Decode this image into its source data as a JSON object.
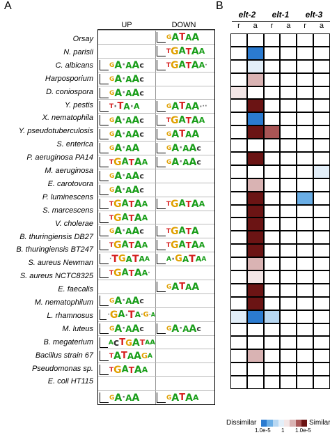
{
  "panel_a_label": "A",
  "panel_b_label": "B",
  "col_up": "UP",
  "col_down": "DOWN",
  "elt_headers": [
    "elt-2",
    "elt-1",
    "elt-3"
  ],
  "ra_labels": [
    "r",
    "a",
    "r",
    "a",
    "r",
    "a"
  ],
  "legend": {
    "dissimilar": "Dissimilar",
    "similar": "Similar",
    "tick_left": "1.0e-5",
    "tick_mid": "1",
    "tick_right": "1.0e-5",
    "dissimilar_colors": [
      "#2b7bd0",
      "#6aaee6",
      "#b7d7f2",
      "#e3eff9"
    ],
    "similar_colors": [
      "#f3e6e6",
      "#d9b3b3",
      "#a85555",
      "#6b1414"
    ]
  },
  "organisms": [
    {
      "name": "Orsay",
      "up": "",
      "down": "GATAA"
    },
    {
      "name": "N. parisii",
      "up": "",
      "down": "TGATAA"
    },
    {
      "name": "C. albicans",
      "up": "GAxAAc",
      "down": "TGATAAx"
    },
    {
      "name": "Harposporium",
      "up": "GAxAAc",
      "down": ""
    },
    {
      "name": "D. coniospora",
      "up": "GAxAAc",
      "down": ""
    },
    {
      "name": "Y. pestis",
      "up": "TxTAxA",
      "down": "GATAAxxx"
    },
    {
      "name": "X. nematophila",
      "up": "GAxAAc",
      "down": "TGATAA"
    },
    {
      "name": "Y. pseudotuberculosis",
      "up": "GAxAAc",
      "down": "GATAA"
    },
    {
      "name": "S. enterica",
      "up": "GAxAA",
      "down": "GAxAAc"
    },
    {
      "name": "P. aeruginosa PA14",
      "up": "TGATAA",
      "down": "GAxAAc"
    },
    {
      "name": "M. aeruginosa",
      "up": "GAxAAc",
      "down": ""
    },
    {
      "name": "E. carotovora",
      "up": "GAxAAc",
      "down": ""
    },
    {
      "name": "P. luminescens",
      "up": "TGATAA",
      "down": "TGATAA"
    },
    {
      "name": "S. marcescens",
      "up": "TGATAA",
      "down": ""
    },
    {
      "name": "V. cholerae",
      "up": "GAxAAc",
      "down": "TGATA"
    },
    {
      "name": "B. thuringiensis DB27",
      "up": "TGATAA",
      "down": "TGATAA"
    },
    {
      "name": "B. thuringiensis BT247",
      "up": "xTGATAA",
      "down": "AxGATAA"
    },
    {
      "name": "S. aureus Newman",
      "up": "TGATAAx",
      "down": ""
    },
    {
      "name": "S. aureus NCTC8325",
      "up": "",
      "down": "GATAA"
    },
    {
      "name": "E. faecalis",
      "up": "GAxAAc",
      "down": ""
    },
    {
      "name": "M. nematophilum",
      "up": "xGAxTAxGxA",
      "down": ""
    },
    {
      "name": "L. rhamnosus",
      "up": "GAxAAc",
      "down": "GAxAAc"
    },
    {
      "name": "M. luteus",
      "up": "AcTGATAA",
      "down": ""
    },
    {
      "name": "B. megaterium",
      "up": "TATAAGA",
      "down": ""
    },
    {
      "name": "Bacillus strain 67",
      "up": "TGATAA",
      "down": ""
    },
    {
      "name": "Pseudomonas sp.",
      "up": "",
      "down": ""
    },
    {
      "name": "E. coli HT115",
      "up": "GAxAA",
      "down": "GAT AA"
    }
  ],
  "heat_colors": {
    "0": "#ffffff",
    "d1": "#2b7bd0",
    "d2": "#6aaee6",
    "d3": "#b7d7f2",
    "d4": "#e3eff9",
    "s1": "#f3e6e6",
    "s2": "#d9b3b3",
    "s3": "#a85555",
    "s4": "#6b1414"
  },
  "heatmap": [
    [
      "0",
      "0",
      "0",
      "0",
      "0",
      "0"
    ],
    [
      "0",
      "d1",
      "0",
      "0",
      "0",
      "0"
    ],
    [
      "0",
      "d4",
      "0",
      "0",
      "0",
      "0"
    ],
    [
      "0",
      "s2",
      "0",
      "0",
      "0",
      "0"
    ],
    [
      "s1",
      "0",
      "0",
      "0",
      "0",
      "0"
    ],
    [
      "0",
      "s4",
      "0",
      "0",
      "0",
      "0"
    ],
    [
      "0",
      "d1",
      "0",
      "0",
      "0",
      "0"
    ],
    [
      "0",
      "s4",
      "s3",
      "0",
      "0",
      "0"
    ],
    [
      "0",
      "0",
      "0",
      "0",
      "0",
      "0"
    ],
    [
      "0",
      "s4",
      "0",
      "0",
      "0",
      "0"
    ],
    [
      "0",
      "0",
      "0",
      "0",
      "0",
      "d4"
    ],
    [
      "0",
      "s2",
      "0",
      "0",
      "0",
      "0"
    ],
    [
      "0",
      "s4",
      "0",
      "0",
      "d2",
      "0"
    ],
    [
      "0",
      "s4",
      "0",
      "0",
      "0",
      "0"
    ],
    [
      "0",
      "s4",
      "0",
      "0",
      "0",
      "0"
    ],
    [
      "0",
      "s4",
      "0",
      "0",
      "0",
      "0"
    ],
    [
      "0",
      "s4",
      "0",
      "0",
      "0",
      "0"
    ],
    [
      "0",
      "s2",
      "0",
      "0",
      "0",
      "0"
    ],
    [
      "0",
      "s1",
      "0",
      "0",
      "0",
      "0"
    ],
    [
      "0",
      "s4",
      "0",
      "0",
      "0",
      "0"
    ],
    [
      "0",
      "s4",
      "0",
      "0",
      "0",
      "0"
    ],
    [
      "d4",
      "d1",
      "d3",
      "0",
      "0",
      "0"
    ],
    [
      "0",
      "0",
      "0",
      "0",
      "0",
      "0"
    ],
    [
      "0",
      "0",
      "0",
      "0",
      "0",
      "0"
    ],
    [
      "0",
      "s2",
      "0",
      "0",
      "0",
      "0"
    ],
    [
      "0",
      "0",
      "0",
      "0",
      "0",
      "0"
    ],
    [
      "0",
      "0",
      "0",
      "0",
      "0",
      "0"
    ]
  ]
}
